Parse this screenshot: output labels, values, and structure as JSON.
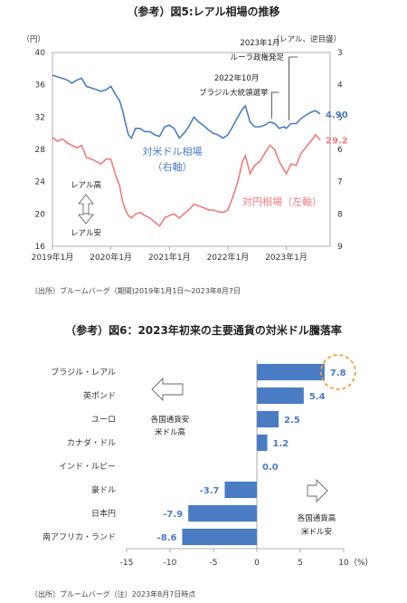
{
  "chart_data": [
    {
      "type": "line",
      "title": "（参考）図5:レアル相場の推移",
      "source_note": "（出所）ブルームバーグ（期間)2019年1月1日～2023年8月7日",
      "left_axis": {
        "unit": "（円）",
        "ylim": [
          16,
          40
        ],
        "ticks": [
          16,
          20,
          24,
          28,
          32,
          36,
          40
        ]
      },
      "right_axis": {
        "unit": "（レアル、逆目盛）",
        "ylim": [
          3,
          9
        ],
        "inverted": true,
        "ticks": [
          3,
          4,
          5,
          6,
          7,
          8,
          9
        ]
      },
      "x_ticks": [
        "2019年1月",
        "2020年1月",
        "2021年1月",
        "2022年1月",
        "2023年1月"
      ],
      "x_tick_times": [
        2019.0,
        2020.0,
        2021.0,
        2022.0,
        2023.0
      ],
      "x_range": [
        2019.0,
        2023.75
      ],
      "series": [
        {
          "name": "対米ドル相場",
          "name_line2": "（右軸）",
          "axis": "right",
          "color": "#4a7cc4",
          "end_label": "4.90",
          "x": [
            2019.0,
            2019.08,
            2019.17,
            2019.25,
            2019.33,
            2019.42,
            2019.5,
            2019.58,
            2019.67,
            2019.75,
            2019.83,
            2019.92,
            2020.0,
            2020.08,
            2020.15,
            2020.2,
            2020.25,
            2020.3,
            2020.35,
            2020.42,
            2020.5,
            2020.58,
            2020.67,
            2020.75,
            2020.83,
            2020.92,
            2021.0,
            2021.08,
            2021.17,
            2021.25,
            2021.33,
            2021.42,
            2021.5,
            2021.58,
            2021.67,
            2021.75,
            2021.83,
            2021.92,
            2022.0,
            2022.08,
            2022.17,
            2022.25,
            2022.3,
            2022.38,
            2022.46,
            2022.55,
            2022.63,
            2022.72,
            2022.8,
            2022.88,
            2022.96,
            2023.0,
            2023.08,
            2023.17,
            2023.25,
            2023.33,
            2023.42,
            2023.5,
            2023.58
          ],
          "values": [
            3.7,
            3.75,
            3.8,
            3.85,
            3.95,
            3.85,
            3.8,
            4.05,
            4.1,
            4.15,
            4.2,
            4.15,
            4.05,
            4.3,
            4.5,
            4.8,
            5.2,
            5.55,
            5.65,
            5.35,
            5.35,
            5.45,
            5.45,
            5.55,
            5.6,
            5.3,
            5.25,
            5.35,
            5.65,
            5.5,
            5.3,
            5.0,
            5.15,
            5.25,
            5.4,
            5.5,
            5.55,
            5.65,
            5.55,
            5.3,
            5.0,
            4.75,
            4.65,
            5.15,
            5.3,
            5.3,
            5.25,
            5.15,
            5.2,
            5.35,
            5.3,
            5.35,
            5.2,
            5.2,
            5.05,
            4.95,
            4.85,
            4.8,
            4.9
          ]
        },
        {
          "name": "対円相場（左軸）",
          "axis": "left",
          "color": "#f07b7b",
          "end_label": "29.2",
          "x": [
            2019.0,
            2019.08,
            2019.17,
            2019.25,
            2019.33,
            2019.42,
            2019.5,
            2019.58,
            2019.67,
            2019.75,
            2019.83,
            2019.92,
            2020.0,
            2020.08,
            2020.15,
            2020.2,
            2020.25,
            2020.3,
            2020.35,
            2020.42,
            2020.5,
            2020.58,
            2020.67,
            2020.75,
            2020.83,
            2020.92,
            2021.0,
            2021.08,
            2021.17,
            2021.25,
            2021.33,
            2021.42,
            2021.5,
            2021.58,
            2021.67,
            2021.75,
            2021.83,
            2021.92,
            2022.0,
            2022.08,
            2022.17,
            2022.25,
            2022.3,
            2022.38,
            2022.46,
            2022.55,
            2022.63,
            2022.72,
            2022.8,
            2022.88,
            2022.96,
            2023.0,
            2023.08,
            2023.17,
            2023.25,
            2023.33,
            2023.42,
            2023.5,
            2023.58
          ],
          "values": [
            29.5,
            29.0,
            29.3,
            28.8,
            28.5,
            28.2,
            28.5,
            27.0,
            26.8,
            26.5,
            26.2,
            26.8,
            26.8,
            24.8,
            23.5,
            21.5,
            20.5,
            19.8,
            19.5,
            20.0,
            20.2,
            19.8,
            19.5,
            19.0,
            18.5,
            19.5,
            19.8,
            20.0,
            19.5,
            20.0,
            20.5,
            21.2,
            21.0,
            20.8,
            20.5,
            20.5,
            20.3,
            20.2,
            20.5,
            22.0,
            24.0,
            26.5,
            27.2,
            25.0,
            26.0,
            26.5,
            27.5,
            28.5,
            28.0,
            26.5,
            25.5,
            25.0,
            26.2,
            26.0,
            27.5,
            28.2,
            29.0,
            29.8,
            29.2
          ]
        }
      ],
      "annotations": {
        "event1": "2023年1月",
        "event1b": "ルーラ政権発足",
        "event1_time": 2023.0,
        "event2": "2022年10月",
        "event2b": "ブラジル大統領選挙",
        "event2_time": 2022.75,
        "arrow_up": "レアル高",
        "arrow_down": "レアル安"
      }
    },
    {
      "type": "bar",
      "orientation": "horizontal",
      "title": "（参考）図6：2023年初来の主要通貨の対米ドル騰落率",
      "source_note": "（出所）ブルームバーグ（注）2023年8月7日時点",
      "categories": [
        "ブラジル・レアル",
        "英ポンド",
        "ユーロ",
        "カナダ・ドル",
        "インド・ルピー",
        "豪ドル",
        "日本円",
        "南アフリカ・ランド"
      ],
      "values": [
        7.8,
        5.4,
        2.5,
        1.2,
        0.0,
        -3.7,
        -7.9,
        -8.6
      ],
      "value_labels": [
        "7.8",
        "5.4",
        "2.5",
        "1.2",
        "0.0",
        "-3.7",
        "-7.9",
        "-8.6"
      ],
      "xlim": [
        -15,
        10
      ],
      "x_ticks": [
        -15,
        -10,
        -5,
        0,
        5,
        10
      ],
      "x_unit": "（%）",
      "bar_color": "#4a7cc4",
      "highlight_color": "#f0a040",
      "highlight_index": 0,
      "left_note": [
        "各国通貨安",
        "米ドル高"
      ],
      "right_note": [
        "各国通貨高",
        "米ドル安"
      ]
    }
  ]
}
